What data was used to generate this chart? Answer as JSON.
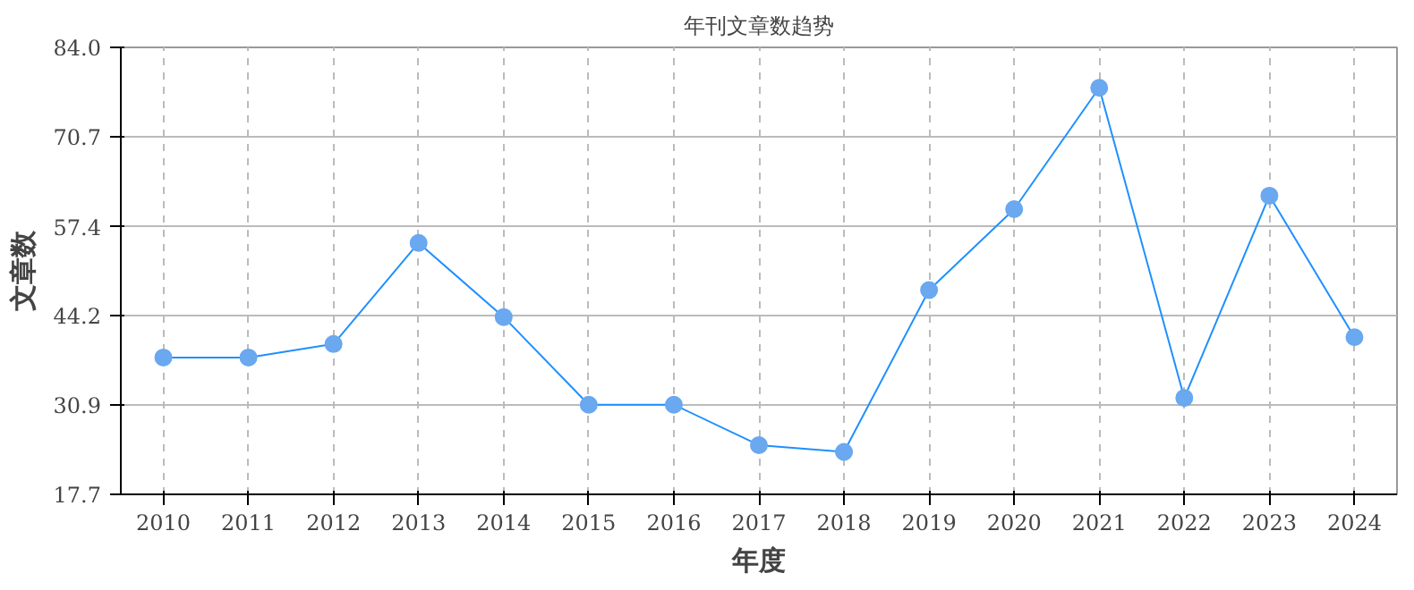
{
  "chart_data": {
    "type": "line",
    "title": "年刊文章数趋势",
    "xlabel": "年度",
    "ylabel": "文章数",
    "categories": [
      "2010",
      "2011",
      "2012",
      "2013",
      "2014",
      "2015",
      "2016",
      "2017",
      "2018",
      "2019",
      "2020",
      "2021",
      "2022",
      "2023",
      "2024"
    ],
    "series": [
      {
        "color": "#1e90ff",
        "values": [
          38,
          38,
          40,
          55,
          44,
          31,
          31,
          25,
          24,
          48,
          60,
          78,
          32,
          62,
          41
        ]
      }
    ],
    "ylim": [
      17.7,
      84.0
    ],
    "yticks": [
      {
        "value": 17.7,
        "label": "17.7"
      },
      {
        "value": 30.9,
        "label": "30.9"
      },
      {
        "value": 44.2,
        "label": "44.2"
      },
      {
        "value": 57.4,
        "label": "57.4"
      },
      {
        "value": 70.7,
        "label": "70.7"
      },
      {
        "value": 84.0,
        "label": "84.0"
      }
    ],
    "grid": true,
    "marker": "circle",
    "line_style": "solid"
  }
}
